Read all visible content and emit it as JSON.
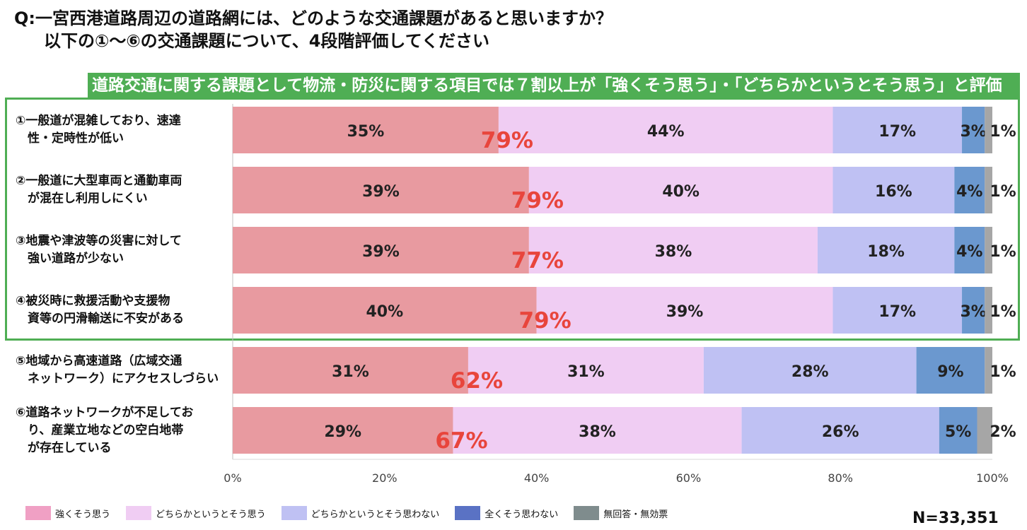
{
  "question": {
    "line1": "Q:一宮西港道路周辺の道路網には、どのような交通課題があると思いますか？",
    "line2": "以下の①～⑥の交通課題について、4段階評価してください"
  },
  "banner": "道路交通に関する課題として物流・防災に関する項目では７割以上が「強くそう思う」・「どちらかというとそう思う」と評価",
  "sample_size": "N=33,351",
  "colors": {
    "strongly_agree": "#e89aa0",
    "somewhat_agree": "#f0cdf3",
    "somewhat_disagree": "#bfc1f3",
    "strongly_disagree": "#6b98cf",
    "no_answer": "#a6a6a6",
    "subtotal_text": "#e8453c",
    "highlight_border": "#4fae54"
  },
  "chart_data": {
    "type": "bar",
    "orientation": "horizontal",
    "stacked": true,
    "categories": [
      "①一般道が混雑しており、速達\n　性・定時性が低い",
      "②一般道に大型車両と通勤車両\n　が混在し利用しにくい",
      "③地震や津波等の災害に対して\n　強い道路が少ない",
      "④被災時に救援活動や支援物\n　資等の円滑輸送に不安がある",
      "⑤地域から高速道路（広域交通\n　ネットワーク）にアクセスしづらい",
      "⑥道路ネットワークが不足してお\n　り、産業立地などの空白地帯\n　が存在している"
    ],
    "series": [
      {
        "name": "強くそう思う",
        "values": [
          35,
          39,
          39,
          40,
          31,
          29
        ]
      },
      {
        "name": "どちらかというとそう思う",
        "values": [
          44,
          40,
          38,
          39,
          31,
          38
        ]
      },
      {
        "name": "どちらかというとそう思わない",
        "values": [
          17,
          16,
          18,
          17,
          28,
          26
        ]
      },
      {
        "name": "全くそう思わない",
        "values": [
          3,
          4,
          4,
          3,
          9,
          5
        ]
      },
      {
        "name": "無回答・無効票",
        "values": [
          1,
          1,
          1,
          1,
          1,
          2
        ]
      }
    ],
    "subtotals": [
      79,
      79,
      77,
      79,
      62,
      67
    ],
    "value_suffix": "%",
    "xlim": [
      0,
      100
    ],
    "xticks": [
      "0%",
      "20%",
      "40%",
      "60%",
      "80%",
      "100%"
    ],
    "grid": false,
    "legend_position": "bottom-left",
    "highlighted_rows": [
      0,
      1,
      2,
      3
    ]
  }
}
